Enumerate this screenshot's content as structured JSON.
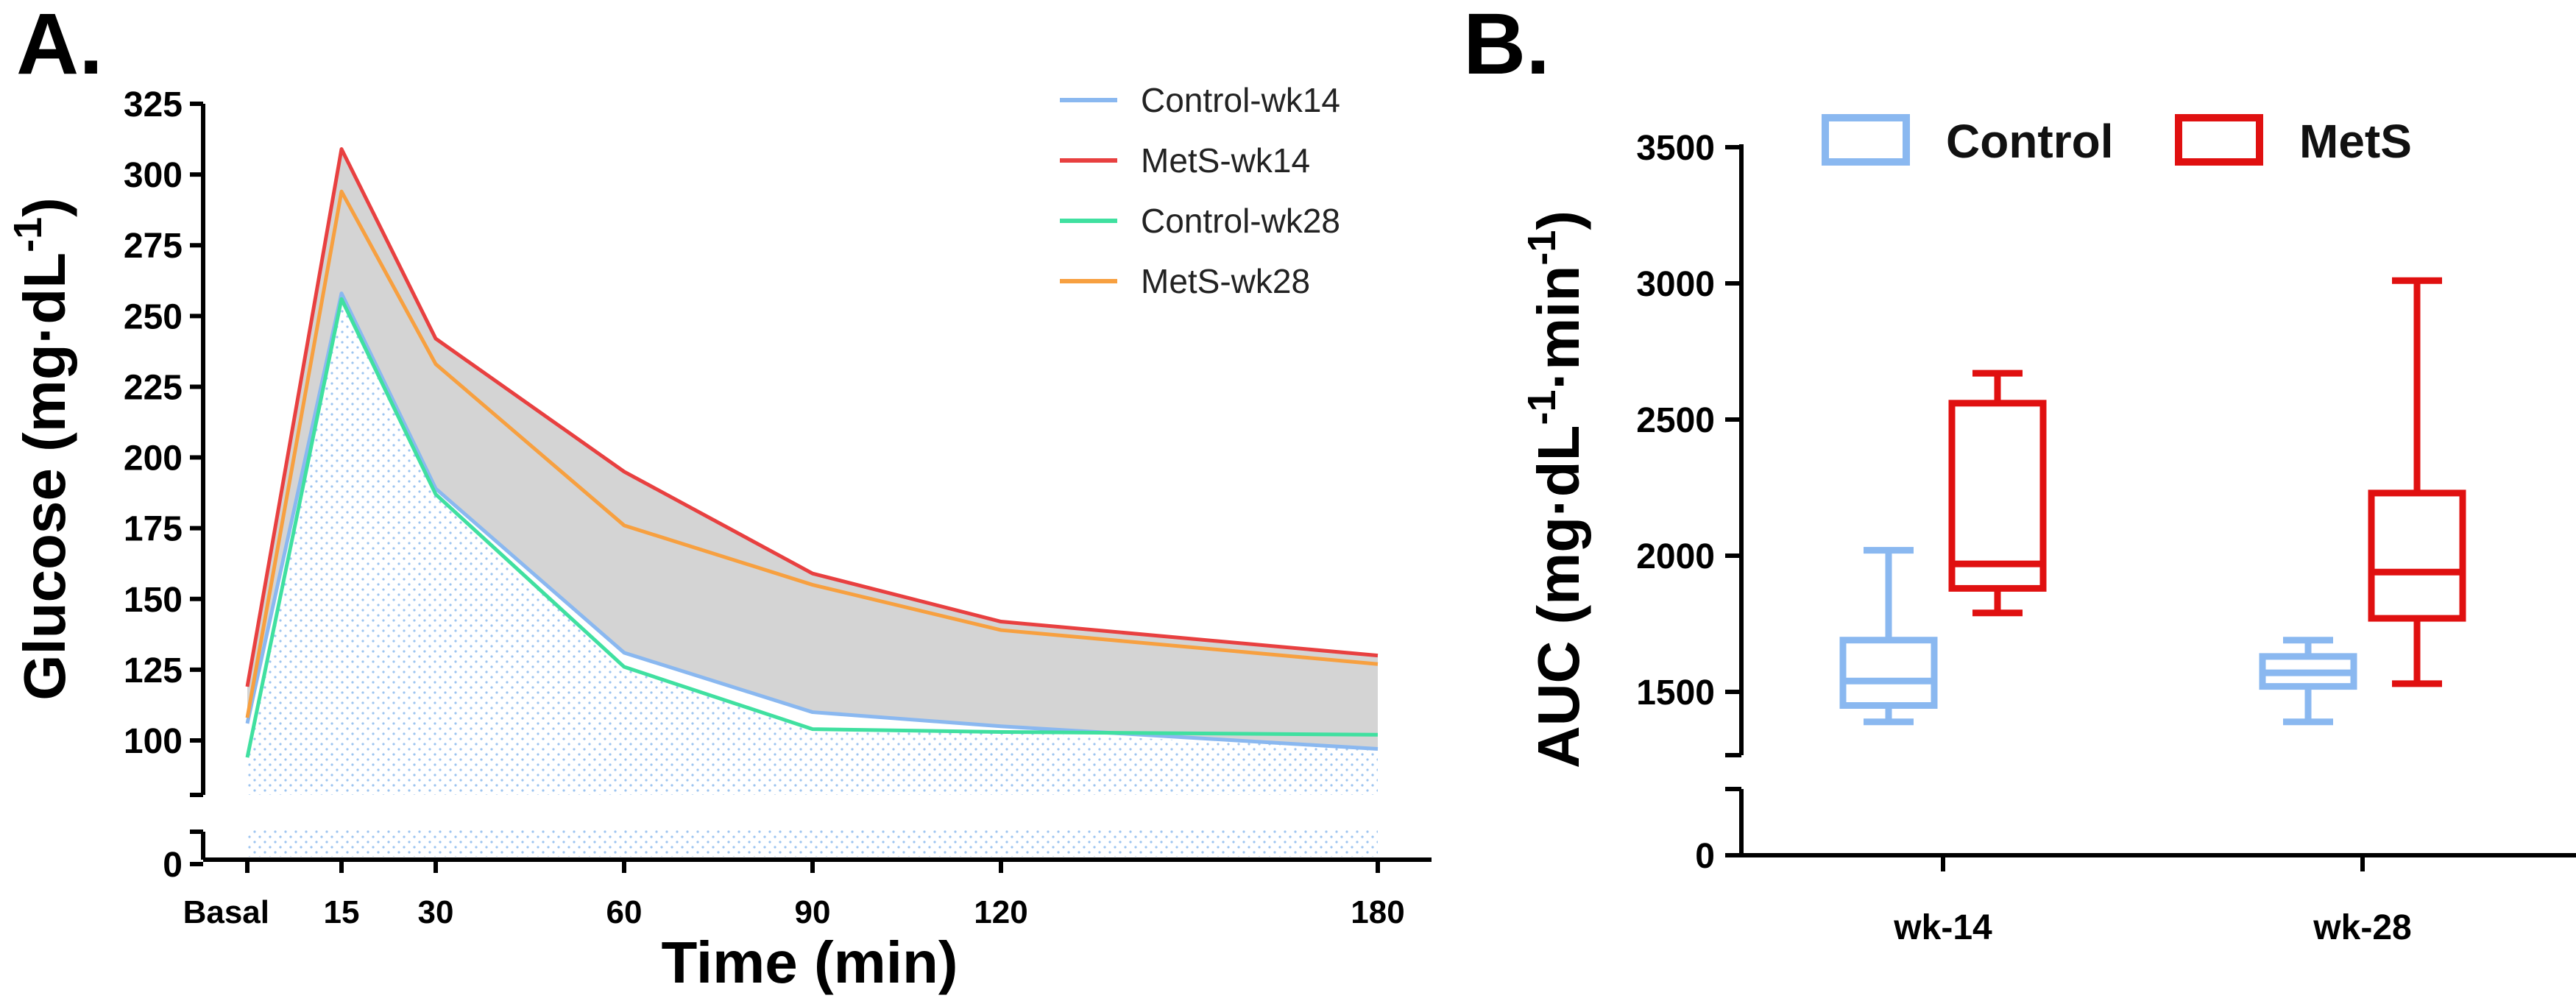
{
  "chart_data": [
    {
      "panel": "A.",
      "type": "line",
      "xlabel": "Time (min)",
      "ylabel": "Glucose (mg·dL",
      "ylabel_sup": "-1",
      "ylabel_close": ")",
      "categories": [
        "Basal",
        "15",
        "30",
        "60",
        "90",
        "120",
        "180"
      ],
      "x": [
        0,
        15,
        30,
        60,
        90,
        120,
        180
      ],
      "yticks": [
        "0",
        "100",
        "125",
        "150",
        "175",
        "200",
        "225",
        "250",
        "275",
        "300",
        "325"
      ],
      "ylim": [
        0,
        325
      ],
      "axis_break": true,
      "series": [
        {
          "name": "Control-wk14",
          "color": "#8ab8f0",
          "values": [
            106,
            258,
            189,
            131,
            110,
            105,
            97
          ]
        },
        {
          "name": "MetS-wk14",
          "color": "#e84040",
          "values": [
            119,
            309,
            242,
            195,
            159,
            142,
            130
          ]
        },
        {
          "name": "Control-wk28",
          "color": "#40e0a0",
          "values": [
            94,
            256,
            187,
            126,
            104,
            103,
            102
          ]
        },
        {
          "name": "MetS-wk28",
          "color": "#f7a040",
          "values": [
            108,
            294,
            233,
            176,
            155,
            139,
            127
          ]
        }
      ],
      "shading": {
        "between": [
          "MetS-wk14",
          "Control-wk14"
        ],
        "color": "#d4d4d4"
      }
    },
    {
      "panel": "B.",
      "type": "box",
      "ylabel": "AUC (mg·dL",
      "ylabel_sup1": "-1",
      "ylabel_mid": "·min",
      "ylabel_sup2": "-1",
      "ylabel_close": ")",
      "categories": [
        "wk-14",
        "wk-28"
      ],
      "yticks": [
        "0",
        "1500",
        "2000",
        "2500",
        "3000",
        "3500"
      ],
      "ylim": [
        0,
        3500
      ],
      "axis_break": true,
      "legend": [
        {
          "name": "Control",
          "color": "#8ab8f0"
        },
        {
          "name": "MetS",
          "color": "#e01010"
        }
      ],
      "series": [
        {
          "name": "Control",
          "color": "#8ab8f0",
          "boxes": [
            {
              "min": 1390,
              "q1": 1450,
              "median": 1540,
              "q3": 1690,
              "max": 2020
            },
            {
              "min": 1390,
              "q1": 1520,
              "median": 1570,
              "q3": 1630,
              "max": 1690
            }
          ]
        },
        {
          "name": "MetS",
          "color": "#e01010",
          "boxes": [
            {
              "min": 1790,
              "q1": 1880,
              "median": 1970,
              "q3": 2560,
              "max": 2670
            },
            {
              "min": 1530,
              "q1": 1770,
              "median": 1940,
              "q3": 2230,
              "max": 3010
            }
          ]
        }
      ]
    }
  ]
}
